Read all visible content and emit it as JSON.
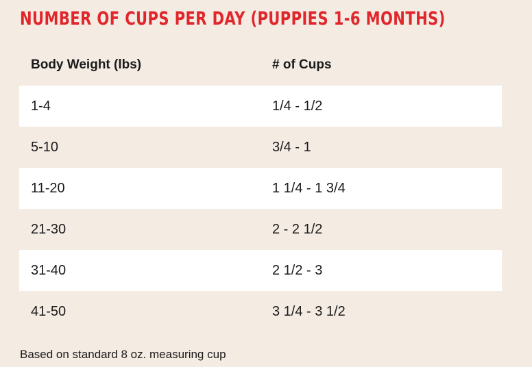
{
  "header": {
    "title": "NUMBER OF CUPS PER DAY (PUPPIES 1-6 MONTHS)"
  },
  "table": {
    "columns": [
      "Body Weight (lbs)",
      "# of Cups"
    ],
    "rows": [
      [
        "1-4",
        "1/4 - 1/2"
      ],
      [
        "5-10",
        "3/4 - 1"
      ],
      [
        "11-20",
        "1 1/4 - 1 3/4"
      ],
      [
        "21-30",
        "2 - 2 1/2"
      ],
      [
        "31-40",
        "2 1/2 - 3"
      ],
      [
        "41-50",
        "3 1/4 - 3 1/2"
      ]
    ]
  },
  "footnote": "Based on standard 8 oz. measuring cup"
}
